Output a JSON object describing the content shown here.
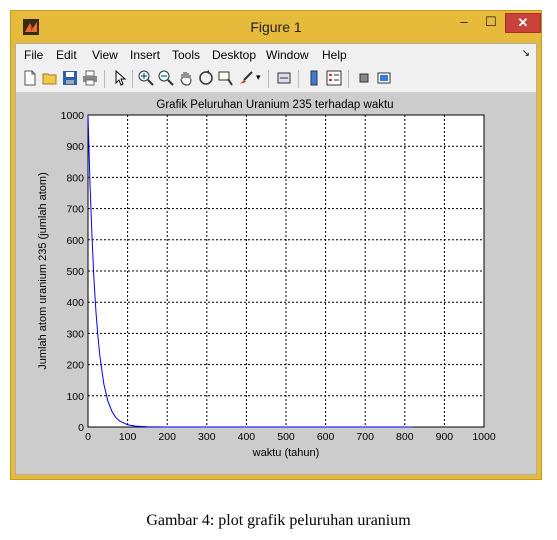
{
  "window": {
    "title": "Figure 1",
    "minimize_label": "–",
    "maximize_label": "☐",
    "close_label": "✕"
  },
  "menu": {
    "items": [
      {
        "label": "File"
      },
      {
        "label": "Edit"
      },
      {
        "label": "View"
      },
      {
        "label": "Insert"
      },
      {
        "label": "Tools"
      },
      {
        "label": "Desktop"
      },
      {
        "label": "Window"
      },
      {
        "label": "Help"
      }
    ],
    "overflow": "↘"
  },
  "toolbar": {
    "icons": [
      "new-figure-icon",
      "open-file-icon",
      "save-icon",
      "print-icon",
      "pointer-icon",
      "zoom-in-icon",
      "zoom-out-icon",
      "pan-icon",
      "rotate-3d-icon",
      "data-cursor-icon",
      "brush-icon",
      "link-icon",
      "colorbar-icon",
      "legend-icon",
      "hide-plot-tools-icon",
      "show-plot-tools-icon"
    ]
  },
  "chart_data": {
    "type": "line",
    "title": "Grafik Peluruhan Uranium 235 terhadap waktu",
    "xlabel": "waktu (tahun)",
    "ylabel": "Jumlah atom uranium 235 (jumlah atom)",
    "xlim": [
      0,
      1000
    ],
    "ylim": [
      0,
      1000
    ],
    "xticks": [
      "0",
      "100",
      "200",
      "300",
      "400",
      "500",
      "600",
      "700",
      "800",
      "900",
      "1000"
    ],
    "yticks": [
      "0",
      "100",
      "200",
      "300",
      "400",
      "500",
      "600",
      "700",
      "800",
      "900",
      "1000"
    ],
    "grid": true,
    "series": [
      {
        "color": "#0000ff",
        "x": [
          0,
          5,
          10,
          15,
          20,
          25,
          30,
          40,
          50,
          60,
          70,
          80,
          100,
          120,
          150,
          200,
          300,
          400,
          500,
          600,
          700,
          800,
          820
        ],
        "y": [
          1000,
          780,
          610,
          476,
          372,
          290,
          227,
          138,
          84,
          51,
          31,
          19,
          7,
          3,
          1,
          0,
          0,
          0,
          0,
          0,
          0,
          0,
          0
        ]
      }
    ]
  },
  "caption": "Gambar 4: plot grafik peluruhan uranium"
}
